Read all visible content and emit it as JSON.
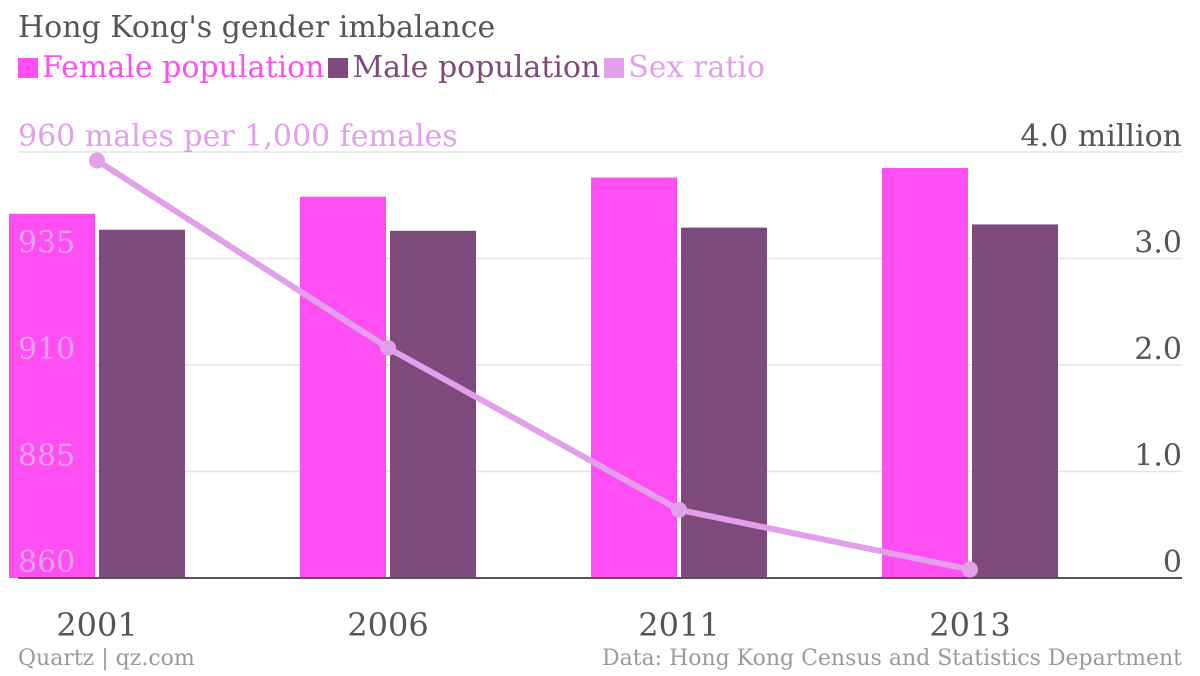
{
  "title": "Hong Kong's gender imbalance",
  "legend": [
    {
      "label": "Female population",
      "color": "#ff4ef2"
    },
    {
      "label": "Male population",
      "color": "#7d4a7b"
    },
    {
      "label": "Sex ratio",
      "color": "#e3a0ea"
    }
  ],
  "footer": {
    "source_left": "Quartz | qz.com",
    "source_right": "Data: Hong Kong Census and Statistics Department"
  },
  "chart_data": {
    "type": "bar",
    "categories": [
      "2001",
      "2006",
      "2011",
      "2013"
    ],
    "series": [
      {
        "name": "Female population",
        "type": "bar",
        "axis": "right",
        "values": [
          3.42,
          3.58,
          3.76,
          3.85
        ]
      },
      {
        "name": "Male population",
        "type": "bar",
        "axis": "right",
        "values": [
          3.27,
          3.26,
          3.29,
          3.32
        ]
      },
      {
        "name": "Sex ratio",
        "type": "line",
        "axis": "left",
        "values": [
          958,
          914,
          876,
          862
        ]
      }
    ],
    "left_axis": {
      "ylim": [
        860,
        960
      ],
      "ticks": [
        860,
        885,
        910,
        935,
        960
      ],
      "tick_labels": [
        "860",
        "885",
        "910",
        "935",
        "960 males per 1,000 females"
      ]
    },
    "right_axis": {
      "ylim": [
        0,
        4
      ],
      "ticks": [
        0,
        1,
        2,
        3,
        4
      ],
      "tick_labels": [
        "0",
        "1.0",
        "2.0",
        "3.0",
        "4.0 million"
      ]
    },
    "grid": true
  }
}
